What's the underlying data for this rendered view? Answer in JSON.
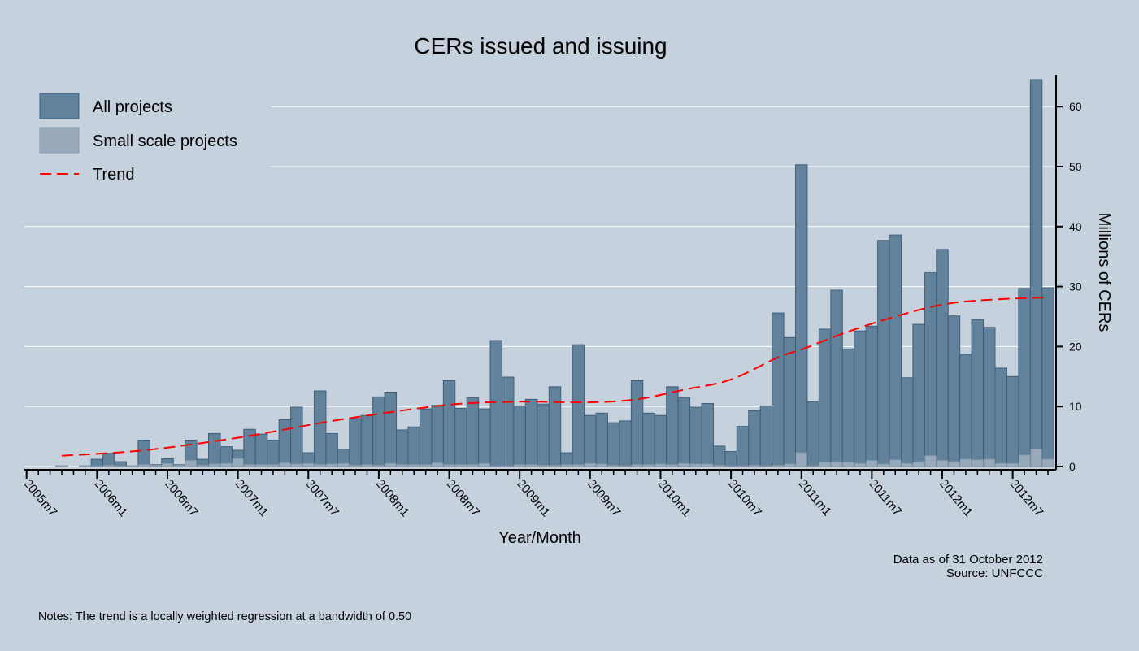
{
  "chart_data": {
    "type": "bar",
    "title": "CERs issued and issuing",
    "xlabel": "Year/Month",
    "ylabel": "Millions of CERs",
    "ylim": [
      0,
      65
    ],
    "yticks": [
      0,
      10,
      20,
      30,
      40,
      50,
      60
    ],
    "xtick_labels": [
      "2005m7",
      "2006m1",
      "2006m7",
      "2007m1",
      "2007m7",
      "2008m1",
      "2008m7",
      "2009m1",
      "2009m7",
      "2010m1",
      "2010m7",
      "2011m1",
      "2011m7",
      "2012m1",
      "2012m7"
    ],
    "grid": true,
    "legend_position": "top-left",
    "x": [
      "2005m7",
      "2005m8",
      "2005m9",
      "2005m10",
      "2005m11",
      "2005m12",
      "2006m1",
      "2006m2",
      "2006m3",
      "2006m4",
      "2006m5",
      "2006m6",
      "2006m7",
      "2006m8",
      "2006m9",
      "2006m10",
      "2006m11",
      "2006m12",
      "2007m1",
      "2007m2",
      "2007m3",
      "2007m4",
      "2007m5",
      "2007m6",
      "2007m7",
      "2007m8",
      "2007m9",
      "2007m10",
      "2007m11",
      "2007m12",
      "2008m1",
      "2008m2",
      "2008m3",
      "2008m4",
      "2008m5",
      "2008m6",
      "2008m7",
      "2008m8",
      "2008m9",
      "2008m10",
      "2008m11",
      "2008m12",
      "2009m1",
      "2009m2",
      "2009m3",
      "2009m4",
      "2009m5",
      "2009m6",
      "2009m7",
      "2009m8",
      "2009m9",
      "2009m10",
      "2009m11",
      "2009m12",
      "2010m1",
      "2010m2",
      "2010m3",
      "2010m4",
      "2010m5",
      "2010m6",
      "2010m7",
      "2010m8",
      "2010m9",
      "2010m10",
      "2010m11",
      "2010m12",
      "2011m1",
      "2011m2",
      "2011m3",
      "2011m4",
      "2011m5",
      "2011m6",
      "2011m7",
      "2011m8",
      "2011m9",
      "2011m10",
      "2011m11",
      "2011m12",
      "2012m1",
      "2012m2",
      "2012m3",
      "2012m4",
      "2012m5",
      "2012m6",
      "2012m7",
      "2012m8",
      "2012m9",
      "2012m10"
    ],
    "series": [
      {
        "name": "All projects",
        "color": "#62819a",
        "values": [
          0,
          0,
          0,
          0.1,
          0,
          0.1,
          1.2,
          2.2,
          0.8,
          0.1,
          4.4,
          0.3,
          1.3,
          0.3,
          4.4,
          1.2,
          5.5,
          3.3,
          2.7,
          6.2,
          5.4,
          4.4,
          7.8,
          9.9,
          2.3,
          12.6,
          5.5,
          2.9,
          8.0,
          8.5,
          11.6,
          12.4,
          6.1,
          6.6,
          9.6,
          10.2,
          14.3,
          9.7,
          11.5,
          9.6,
          21.0,
          14.9,
          10.1,
          11.2,
          10.4,
          13.3,
          2.3,
          20.3,
          8.5,
          8.9,
          7.3,
          7.6,
          14.3,
          8.9,
          8.5,
          13.3,
          11.5,
          9.9,
          10.5,
          3.4,
          2.5,
          6.7,
          9.3,
          10.1,
          25.6,
          21.5,
          50.3,
          10.8,
          22.9,
          29.4,
          19.6,
          22.6,
          23.4,
          37.7,
          38.6,
          14.8,
          23.7,
          32.3,
          36.2,
          25.1,
          18.7,
          24.5,
          23.2,
          16.4,
          15.0,
          29.7,
          64.5,
          29.8
        ]
      },
      {
        "name": "Small scale projects",
        "color": "#97a9bb",
        "values": [
          0,
          0,
          0,
          0.1,
          0,
          0.1,
          0.1,
          0.2,
          0.1,
          0.1,
          0.3,
          0.2,
          0.5,
          0.2,
          1.0,
          0.2,
          0.4,
          0.5,
          1.3,
          0.3,
          0.3,
          0.3,
          0.6,
          0.4,
          0.5,
          0.3,
          0.4,
          0.5,
          0.2,
          0.3,
          0.2,
          0.5,
          0.3,
          0.3,
          0.3,
          0.6,
          0.3,
          0.3,
          0.3,
          0.5,
          0.1,
          0.1,
          0.3,
          0.3,
          0.2,
          0.2,
          0.3,
          0.3,
          0.5,
          0.4,
          0.2,
          0.1,
          0.3,
          0.3,
          0.4,
          0.3,
          0.5,
          0.4,
          0.4,
          0.2,
          0.1,
          0.1,
          0.2,
          0.1,
          0.2,
          0.4,
          2.3,
          0.1,
          0.7,
          0.8,
          0.7,
          0.5,
          1.0,
          0.4,
          1.1,
          0.5,
          0.8,
          1.8,
          1.0,
          0.8,
          1.2,
          1.1,
          1.2,
          0.5,
          0.5,
          1.9,
          2.9,
          1.2
        ]
      },
      {
        "name": "Trend",
        "color": "#ff0000",
        "type": "line",
        "points": [
          [
            "2005m10",
            1.8
          ],
          [
            "2006m5",
            2.7
          ],
          [
            "2007m1",
            4.8
          ],
          [
            "2007m7",
            6.9
          ],
          [
            "2007m11",
            8.2
          ],
          [
            "2008m7",
            10.3
          ],
          [
            "2009m1",
            10.8
          ],
          [
            "2009m7",
            10.7
          ],
          [
            "2009m11",
            11.2
          ],
          [
            "2010m3",
            12.8
          ],
          [
            "2010m7",
            14.5
          ],
          [
            "2010m11",
            18.2
          ],
          [
            "2011m1",
            19.5
          ],
          [
            "2011m5",
            22.5
          ],
          [
            "2011m9",
            25.0
          ],
          [
            "2012m1",
            27.0
          ],
          [
            "2012m5",
            27.8
          ],
          [
            "2012m10",
            28.2
          ]
        ]
      }
    ],
    "source_note": "Data as of 31 October 2012",
    "source": "Source: UNFCCC",
    "notes": "Notes: The trend is a locally weighted regression at a bandwidth of 0.50"
  }
}
